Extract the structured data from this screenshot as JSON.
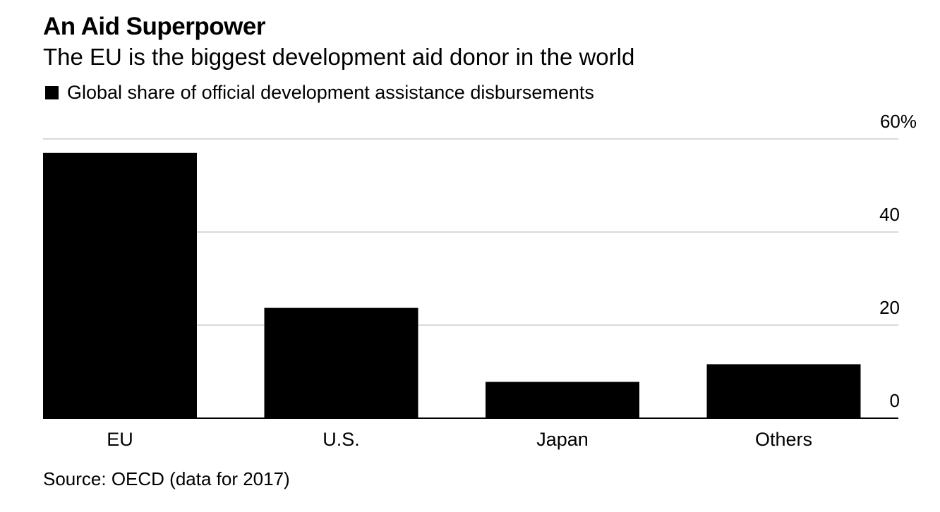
{
  "header": {
    "title": "An Aid Superpower",
    "subtitle": "The EU is the biggest development aid donor in the world"
  },
  "legend": {
    "label": "Global share of official development assistance disbursements",
    "color": "#000000"
  },
  "footer": {
    "source": "Source: OECD (data for 2017)"
  },
  "chart_data": {
    "type": "bar",
    "categories": [
      "EU",
      "U.S.",
      "Japan",
      "Others"
    ],
    "series": [
      {
        "name": "Global share of official development assistance disbursements",
        "values": [
          57,
          23.7,
          7.8,
          11.6
        ],
        "color": "#000000"
      }
    ],
    "ylim": [
      0,
      60
    ],
    "yticks": [
      0,
      20,
      40,
      60
    ],
    "ytick_labels": [
      "0",
      "20",
      "40",
      "60%"
    ],
    "y_axis_position": "right",
    "grid": true,
    "gridline_color": "#d9d9d9",
    "legend_position": "top-left"
  }
}
